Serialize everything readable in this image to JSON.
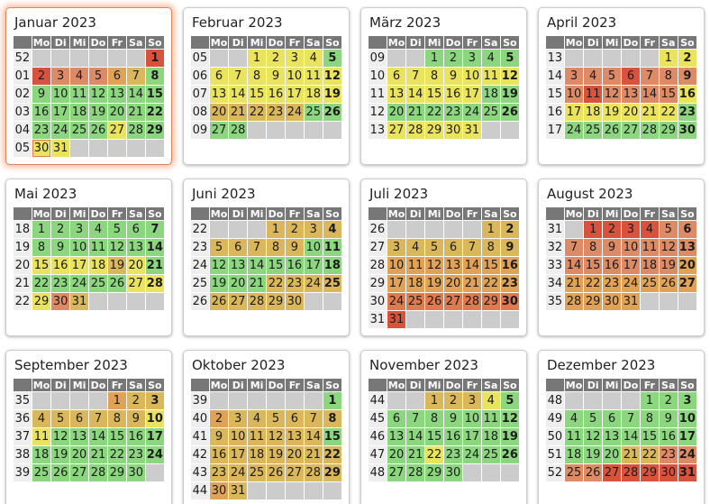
{
  "year_label": "2023",
  "weekdays": [
    "Mo",
    "Di",
    "Mi",
    "Do",
    "Fr",
    "Sa",
    "So"
  ],
  "cell_format": "day:colorKey[:h=red-holiday-number][:t=today-outline]; empty string = blank gray cell",
  "palette": {
    "green": "#8cd67f",
    "yellow": "#e9e35e",
    "gold": "#dbb75c",
    "orange": "#dfa257",
    "salmon": "#dd8a66",
    "redorange": "#e0794f",
    "red": "#d9523e",
    "empty_cell": "#cccccc",
    "header_bg": "#777777",
    "header_text": "#ffffff",
    "weeknum_bg": "#eeeeee",
    "weeknum_text": "#999999",
    "holiday_text": "#d63300",
    "today_border": "#e07a55",
    "highlight_border": "#e2835c"
  },
  "months": [
    {
      "id": "januar",
      "name": "Januar 2023",
      "highlight": true,
      "weeks": [
        {
          "wn": "52",
          "days": [
            "",
            "",
            "",
            "",
            "",
            "",
            "1:red:h"
          ]
        },
        {
          "wn": "01",
          "days": [
            "2:red",
            "3:salmon",
            "4:salmon",
            "5:salmon",
            "6:orange:h",
            "7:gold",
            "8:green"
          ]
        },
        {
          "wn": "02",
          "days": [
            "9:green",
            "10:green",
            "11:green",
            "12:green",
            "13:green",
            "14:green",
            "15:green"
          ]
        },
        {
          "wn": "03",
          "days": [
            "16:green",
            "17:green",
            "18:green",
            "19:green",
            "20:green",
            "21:green",
            "22:green"
          ]
        },
        {
          "wn": "04",
          "days": [
            "23:green",
            "24:green",
            "25:green",
            "26:green",
            "27:yellow",
            "28:green",
            "29:green"
          ]
        },
        {
          "wn": "05",
          "days": [
            "30:yellow:t",
            "31:yellow",
            "",
            "",
            "",
            "",
            ""
          ]
        }
      ]
    },
    {
      "id": "februar",
      "name": "Februar 2023",
      "highlight": false,
      "weeks": [
        {
          "wn": "05",
          "days": [
            "",
            "",
            "1:yellow",
            "2:yellow",
            "3:yellow",
            "4:yellow",
            "5:green"
          ]
        },
        {
          "wn": "06",
          "days": [
            "6:yellow",
            "7:yellow",
            "8:yellow",
            "9:yellow",
            "10:yellow",
            "11:yellow",
            "12:yellow"
          ]
        },
        {
          "wn": "07",
          "days": [
            "13:yellow",
            "14:yellow",
            "15:yellow",
            "16:yellow",
            "17:yellow",
            "18:yellow",
            "19:yellow"
          ]
        },
        {
          "wn": "08",
          "days": [
            "20:gold",
            "21:gold",
            "22:gold",
            "23:gold",
            "24:gold",
            "25:green",
            "26:green"
          ]
        },
        {
          "wn": "09",
          "days": [
            "27:green",
            "28:green",
            "",
            "",
            "",
            "",
            ""
          ]
        }
      ]
    },
    {
      "id": "maerz",
      "name": "März 2023",
      "highlight": false,
      "weeks": [
        {
          "wn": "09",
          "days": [
            "",
            "",
            "1:green",
            "2:green",
            "3:green",
            "4:green",
            "5:green"
          ]
        },
        {
          "wn": "10",
          "days": [
            "6:yellow",
            "7:yellow",
            "8:yellow:h",
            "9:yellow",
            "10:yellow",
            "11:yellow",
            "12:yellow"
          ]
        },
        {
          "wn": "11",
          "days": [
            "13:yellow",
            "14:yellow",
            "15:yellow",
            "16:yellow",
            "17:yellow",
            "18:green",
            "19:green"
          ]
        },
        {
          "wn": "12",
          "days": [
            "20:green",
            "21:green",
            "22:green",
            "23:green",
            "24:green",
            "25:green",
            "26:green"
          ]
        },
        {
          "wn": "13",
          "days": [
            "27:yellow",
            "28:yellow",
            "29:yellow",
            "30:yellow",
            "31:yellow",
            "",
            ""
          ]
        }
      ]
    },
    {
      "id": "april",
      "name": "April 2023",
      "highlight": false,
      "weeks": [
        {
          "wn": "13",
          "days": [
            "",
            "",
            "",
            "",
            "",
            "1:yellow",
            "2:yellow"
          ]
        },
        {
          "wn": "14",
          "days": [
            "3:salmon",
            "4:salmon",
            "5:salmon",
            "6:red",
            "7:salmon:h",
            "8:salmon",
            "9:salmon:h"
          ]
        },
        {
          "wn": "15",
          "days": [
            "10:salmon:h",
            "11:red",
            "12:salmon",
            "13:salmon",
            "14:salmon",
            "15:salmon",
            "16:yellow"
          ]
        },
        {
          "wn": "16",
          "days": [
            "17:yellow",
            "18:yellow",
            "19:yellow",
            "20:yellow",
            "21:yellow",
            "22:yellow",
            "23:green"
          ]
        },
        {
          "wn": "17",
          "days": [
            "24:green",
            "25:green",
            "26:green",
            "27:green",
            "28:green",
            "29:green",
            "30:green"
          ]
        }
      ]
    },
    {
      "id": "mai",
      "name": "Mai 2023",
      "highlight": false,
      "weeks": [
        {
          "wn": "18",
          "days": [
            "1:green:h",
            "2:green",
            "3:green",
            "4:green",
            "5:green",
            "6:green",
            "7:green"
          ]
        },
        {
          "wn": "19",
          "days": [
            "8:green",
            "9:green",
            "10:green",
            "11:green",
            "12:green",
            "13:green",
            "14:green"
          ]
        },
        {
          "wn": "20",
          "days": [
            "15:yellow",
            "16:yellow",
            "17:yellow",
            "18:yellow:h",
            "19:gold",
            "20:yellow",
            "21:green"
          ]
        },
        {
          "wn": "21",
          "days": [
            "22:green",
            "23:green",
            "24:green",
            "25:green",
            "26:green",
            "27:yellow",
            "28:yellow:h"
          ]
        },
        {
          "wn": "22",
          "days": [
            "29:yellow:h",
            "30:salmon",
            "31:gold",
            "",
            "",
            "",
            ""
          ]
        }
      ]
    },
    {
      "id": "juni",
      "name": "Juni 2023",
      "highlight": false,
      "weeks": [
        {
          "wn": "22",
          "days": [
            "",
            "",
            "",
            "1:gold",
            "2:gold",
            "3:gold",
            "4:gold"
          ]
        },
        {
          "wn": "23",
          "days": [
            "5:gold",
            "6:gold",
            "7:gold",
            "8:gold:h",
            "9:gold",
            "10:green",
            "11:green"
          ]
        },
        {
          "wn": "24",
          "days": [
            "12:green",
            "13:green",
            "14:green",
            "15:green",
            "16:green",
            "17:green",
            "18:green"
          ]
        },
        {
          "wn": "25",
          "days": [
            "19:green",
            "20:green",
            "21:green",
            "22:gold",
            "23:gold",
            "24:gold",
            "25:gold"
          ]
        },
        {
          "wn": "26",
          "days": [
            "26:gold",
            "27:gold",
            "28:gold",
            "29:gold",
            "30:gold",
            "",
            ""
          ]
        }
      ]
    },
    {
      "id": "juli",
      "name": "Juli 2023",
      "highlight": false,
      "weeks": [
        {
          "wn": "26",
          "days": [
            "",
            "",
            "",
            "",
            "",
            "1:gold",
            "2:gold"
          ]
        },
        {
          "wn": "27",
          "days": [
            "3:gold",
            "4:gold",
            "5:gold",
            "6:gold",
            "7:gold",
            "8:gold",
            "9:gold"
          ]
        },
        {
          "wn": "28",
          "days": [
            "10:orange",
            "11:orange",
            "12:orange",
            "13:orange",
            "14:orange",
            "15:orange",
            "16:orange"
          ]
        },
        {
          "wn": "29",
          "days": [
            "17:orange",
            "18:orange",
            "19:orange",
            "20:orange",
            "21:orange",
            "22:orange",
            "23:orange"
          ]
        },
        {
          "wn": "30",
          "days": [
            "24:redorange",
            "25:redorange",
            "26:redorange",
            "27:redorange",
            "28:redorange",
            "29:redorange",
            "30:redorange"
          ]
        },
        {
          "wn": "31",
          "days": [
            "31:red",
            "",
            "",
            "",
            "",
            "",
            ""
          ]
        }
      ]
    },
    {
      "id": "august",
      "name": "August 2023",
      "highlight": false,
      "weeks": [
        {
          "wn": "31",
          "days": [
            "",
            "1:red",
            "2:red",
            "3:red",
            "4:red",
            "5:salmon",
            "6:salmon"
          ]
        },
        {
          "wn": "32",
          "days": [
            "7:salmon",
            "8:salmon",
            "9:salmon",
            "10:salmon",
            "11:salmon",
            "12:salmon",
            "13:salmon"
          ]
        },
        {
          "wn": "33",
          "days": [
            "14:salmon",
            "15:salmon:h",
            "16:salmon",
            "17:salmon",
            "18:salmon",
            "19:salmon",
            "20:orange"
          ]
        },
        {
          "wn": "34",
          "days": [
            "21:orange",
            "22:orange",
            "23:orange",
            "24:orange",
            "25:orange",
            "26:orange",
            "27:orange"
          ]
        },
        {
          "wn": "35",
          "days": [
            "28:orange",
            "29:orange",
            "30:orange",
            "31:orange",
            "",
            "",
            ""
          ]
        }
      ]
    },
    {
      "id": "september",
      "name": "September 2023",
      "highlight": false,
      "weeks": [
        {
          "wn": "35",
          "days": [
            "",
            "",
            "",
            "",
            "1:orange",
            "2:gold",
            "3:gold"
          ]
        },
        {
          "wn": "36",
          "days": [
            "4:gold",
            "5:gold",
            "6:gold",
            "7:gold",
            "8:gold",
            "9:gold",
            "10:yellow"
          ]
        },
        {
          "wn": "37",
          "days": [
            "11:yellow",
            "12:green",
            "13:green",
            "14:green",
            "15:green",
            "16:green",
            "17:green"
          ]
        },
        {
          "wn": "38",
          "days": [
            "18:green",
            "19:green",
            "20:green:h",
            "21:green",
            "22:green",
            "23:green",
            "24:green"
          ]
        },
        {
          "wn": "39",
          "days": [
            "25:green",
            "26:green",
            "27:green",
            "28:green",
            "29:green",
            "30:green",
            ""
          ]
        }
      ]
    },
    {
      "id": "oktober",
      "name": "Oktober 2023",
      "highlight": false,
      "weeks": [
        {
          "wn": "39",
          "days": [
            "",
            "",
            "",
            "",
            "",
            "",
            "1:green"
          ]
        },
        {
          "wn": "40",
          "days": [
            "2:orange",
            "3:gold:h",
            "4:gold",
            "5:gold",
            "6:gold",
            "7:gold",
            "8:gold"
          ]
        },
        {
          "wn": "41",
          "days": [
            "9:gold",
            "10:gold",
            "11:gold",
            "12:gold",
            "13:gold",
            "14:gold",
            "15:green"
          ]
        },
        {
          "wn": "42",
          "days": [
            "16:gold",
            "17:gold",
            "18:gold",
            "19:gold",
            "20:gold",
            "21:gold",
            "22:gold"
          ]
        },
        {
          "wn": "43",
          "days": [
            "23:gold",
            "24:gold",
            "25:gold",
            "26:gold",
            "27:gold",
            "28:gold",
            "29:gold"
          ]
        },
        {
          "wn": "44",
          "days": [
            "30:orange",
            "31:gold:h",
            "",
            "",
            "",
            "",
            ""
          ]
        }
      ]
    },
    {
      "id": "november",
      "name": "November 2023",
      "highlight": false,
      "weeks": [
        {
          "wn": "44",
          "days": [
            "",
            "",
            "1:gold:h",
            "2:gold",
            "3:gold",
            "4:yellow",
            "5:green"
          ]
        },
        {
          "wn": "45",
          "days": [
            "6:green",
            "7:green",
            "8:green",
            "9:green",
            "10:green",
            "11:green",
            "12:green"
          ]
        },
        {
          "wn": "46",
          "days": [
            "13:green",
            "14:green",
            "15:green",
            "16:green",
            "17:green",
            "18:green",
            "19:green"
          ]
        },
        {
          "wn": "47",
          "days": [
            "20:green",
            "21:green",
            "22:yellow:h",
            "23:green",
            "24:green",
            "25:green",
            "26:green"
          ]
        },
        {
          "wn": "48",
          "days": [
            "27:green",
            "28:green",
            "29:green",
            "30:green",
            "",
            "",
            ""
          ]
        }
      ]
    },
    {
      "id": "dezember",
      "name": "Dezember 2023",
      "highlight": false,
      "weeks": [
        {
          "wn": "48",
          "days": [
            "",
            "",
            "",
            "",
            "1:green",
            "2:green",
            "3:green"
          ]
        },
        {
          "wn": "49",
          "days": [
            "4:green",
            "5:green",
            "6:green",
            "7:green",
            "8:green",
            "9:green",
            "10:green"
          ]
        },
        {
          "wn": "50",
          "days": [
            "11:green",
            "12:green",
            "13:green",
            "14:green",
            "15:green",
            "16:green",
            "17:green"
          ]
        },
        {
          "wn": "51",
          "days": [
            "18:green",
            "19:green",
            "20:green",
            "21:gold",
            "22:gold",
            "23:salmon",
            "24:salmon"
          ]
        },
        {
          "wn": "52",
          "days": [
            "25:salmon:h",
            "26:salmon:h",
            "27:red",
            "28:red",
            "29:red",
            "30:red",
            "31:red"
          ]
        }
      ]
    }
  ]
}
